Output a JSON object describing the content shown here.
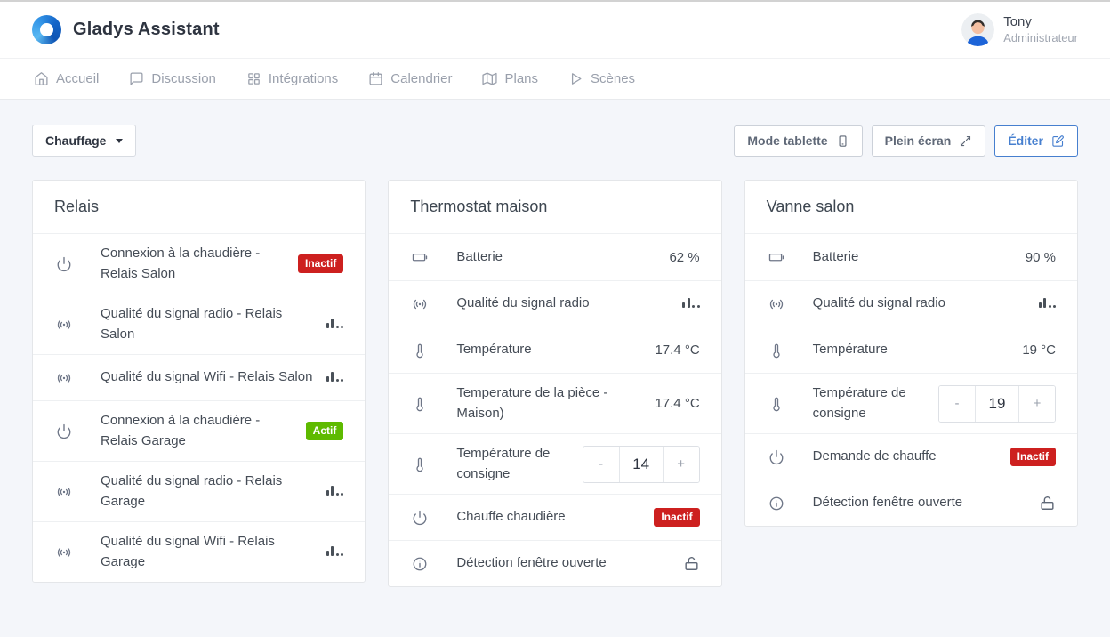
{
  "header": {
    "app_title": "Gladys Assistant",
    "user": {
      "name": "Tony",
      "role": "Administrateur"
    }
  },
  "nav": {
    "items": [
      {
        "name": "accueil",
        "label": "Accueil",
        "icon": "home-icon"
      },
      {
        "name": "discussion",
        "label": "Discussion",
        "icon": "message-icon"
      },
      {
        "name": "integrations",
        "label": "Intégrations",
        "icon": "grid-icon"
      },
      {
        "name": "calendrier",
        "label": "Calendrier",
        "icon": "calendar-icon"
      },
      {
        "name": "plans",
        "label": "Plans",
        "icon": "map-icon"
      },
      {
        "name": "scenes",
        "label": "Scènes",
        "icon": "play-icon"
      }
    ]
  },
  "toolbar": {
    "dashboard_selector": "Chauffage",
    "tablet_mode_label": "Mode tablette",
    "fullscreen_label": "Plein écran",
    "edit_label": "Éditer"
  },
  "colors": {
    "badge_red": "#cd201f",
    "badge_green": "#5eba00",
    "accent": "#467fcf"
  },
  "cards": [
    {
      "title": "Relais",
      "rows": [
        {
          "icon": "power-icon",
          "label": "Connexion à la chaudière - Relais Salon",
          "value": {
            "type": "badge",
            "text": "Inactif",
            "color": "red"
          }
        },
        {
          "icon": "signal-icon",
          "label": "Qualité du signal radio - Relais Salon",
          "value": {
            "type": "signal"
          }
        },
        {
          "icon": "signal-icon",
          "label": "Qualité du signal Wifi - Relais Salon",
          "value": {
            "type": "signal"
          }
        },
        {
          "icon": "power-icon",
          "label": "Connexion à la chaudière - Relais Garage",
          "value": {
            "type": "badge",
            "text": "Actif",
            "color": "green"
          }
        },
        {
          "icon": "signal-icon",
          "label": "Qualité du signal radio - Relais Garage",
          "value": {
            "type": "signal"
          }
        },
        {
          "icon": "signal-icon",
          "label": "Qualité du signal Wifi - Relais Garage",
          "value": {
            "type": "signal"
          }
        }
      ]
    },
    {
      "title": "Thermostat maison",
      "rows": [
        {
          "icon": "battery-icon",
          "label": "Batterie",
          "value": {
            "type": "text",
            "text": "62 %"
          }
        },
        {
          "icon": "signal-icon",
          "label": "Qualité du signal radio",
          "value": {
            "type": "signal"
          }
        },
        {
          "icon": "thermometer-icon",
          "label": "Température",
          "value": {
            "type": "text",
            "text": "17.4 °C"
          }
        },
        {
          "icon": "thermometer-icon",
          "label": "Temperature de la pièce - Maison)",
          "value": {
            "type": "text",
            "text": "17.4 °C"
          }
        },
        {
          "icon": "thermometer-icon",
          "label": "Température de consigne",
          "value": {
            "type": "stepper",
            "text": "14",
            "minus_label": "-",
            "plus_label": "+"
          }
        },
        {
          "icon": "power-icon",
          "label": "Chauffe chaudière",
          "value": {
            "type": "badge",
            "text": "Inactif",
            "color": "red"
          }
        },
        {
          "icon": "info-icon",
          "label": "Détection fenêtre ouverte",
          "value": {
            "type": "lock"
          }
        }
      ]
    },
    {
      "title": "Vanne salon",
      "rows": [
        {
          "icon": "battery-icon",
          "label": "Batterie",
          "value": {
            "type": "text",
            "text": "90 %"
          }
        },
        {
          "icon": "signal-icon",
          "label": "Qualité du signal radio",
          "value": {
            "type": "signal"
          }
        },
        {
          "icon": "thermometer-icon",
          "label": "Température",
          "value": {
            "type": "text",
            "text": "19 °C"
          }
        },
        {
          "icon": "thermometer-icon",
          "label": "Température de consigne",
          "value": {
            "type": "stepper",
            "text": "19",
            "minus_label": "-",
            "plus_label": "+"
          }
        },
        {
          "icon": "power-icon",
          "label": "Demande de chauffe",
          "value": {
            "type": "badge",
            "text": "Inactif",
            "color": "red"
          }
        },
        {
          "icon": "info-icon",
          "label": "Détection fenêtre ouverte",
          "value": {
            "type": "lock"
          }
        }
      ]
    }
  ]
}
